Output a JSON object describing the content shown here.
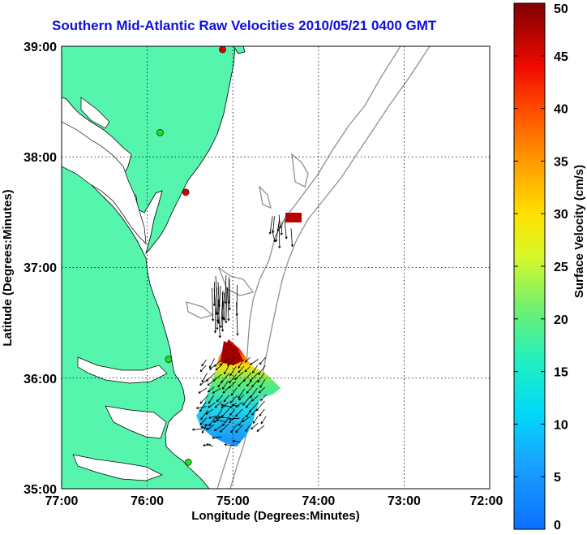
{
  "title": "Southern Mid-Atlantic Raw Velocities 2010/05/21 0400 GMT",
  "x_axis": {
    "label": "Longitude (Degrees:Minutes)",
    "ticks": [
      "77:00",
      "76:00",
      "75:00",
      "74:00",
      "73:00",
      "72:00"
    ]
  },
  "y_axis": {
    "label": "Latitude (Degrees:Minutes)",
    "ticks": [
      "39:00",
      "38:00",
      "37:00",
      "36:00",
      "35:00"
    ]
  },
  "colorbar": {
    "label": "Surface Velocity (cm/s)",
    "ticks": [
      "50",
      "45",
      "40",
      "35",
      "30",
      "25",
      "20",
      "15",
      "10",
      "5",
      "0"
    ],
    "range": [
      0,
      50
    ],
    "colormap": "jet"
  },
  "chart_data": {
    "type": "map",
    "lon_range": [
      -77,
      -72
    ],
    "lat_range": [
      35,
      39
    ],
    "grid": true,
    "land_color": "#55f5ad",
    "stations": [
      {
        "lon": -75.12,
        "lat": 38.97,
        "color": "#e00000"
      },
      {
        "lon": -75.85,
        "lat": 38.22,
        "color": "#22dd22"
      },
      {
        "lon": -75.55,
        "lat": 37.68,
        "color": "#e00000"
      },
      {
        "lon": -75.75,
        "lat": 36.17,
        "color": "#22dd22"
      },
      {
        "lon": -75.52,
        "lat": 35.24,
        "color": "#22dd22"
      }
    ]
  }
}
